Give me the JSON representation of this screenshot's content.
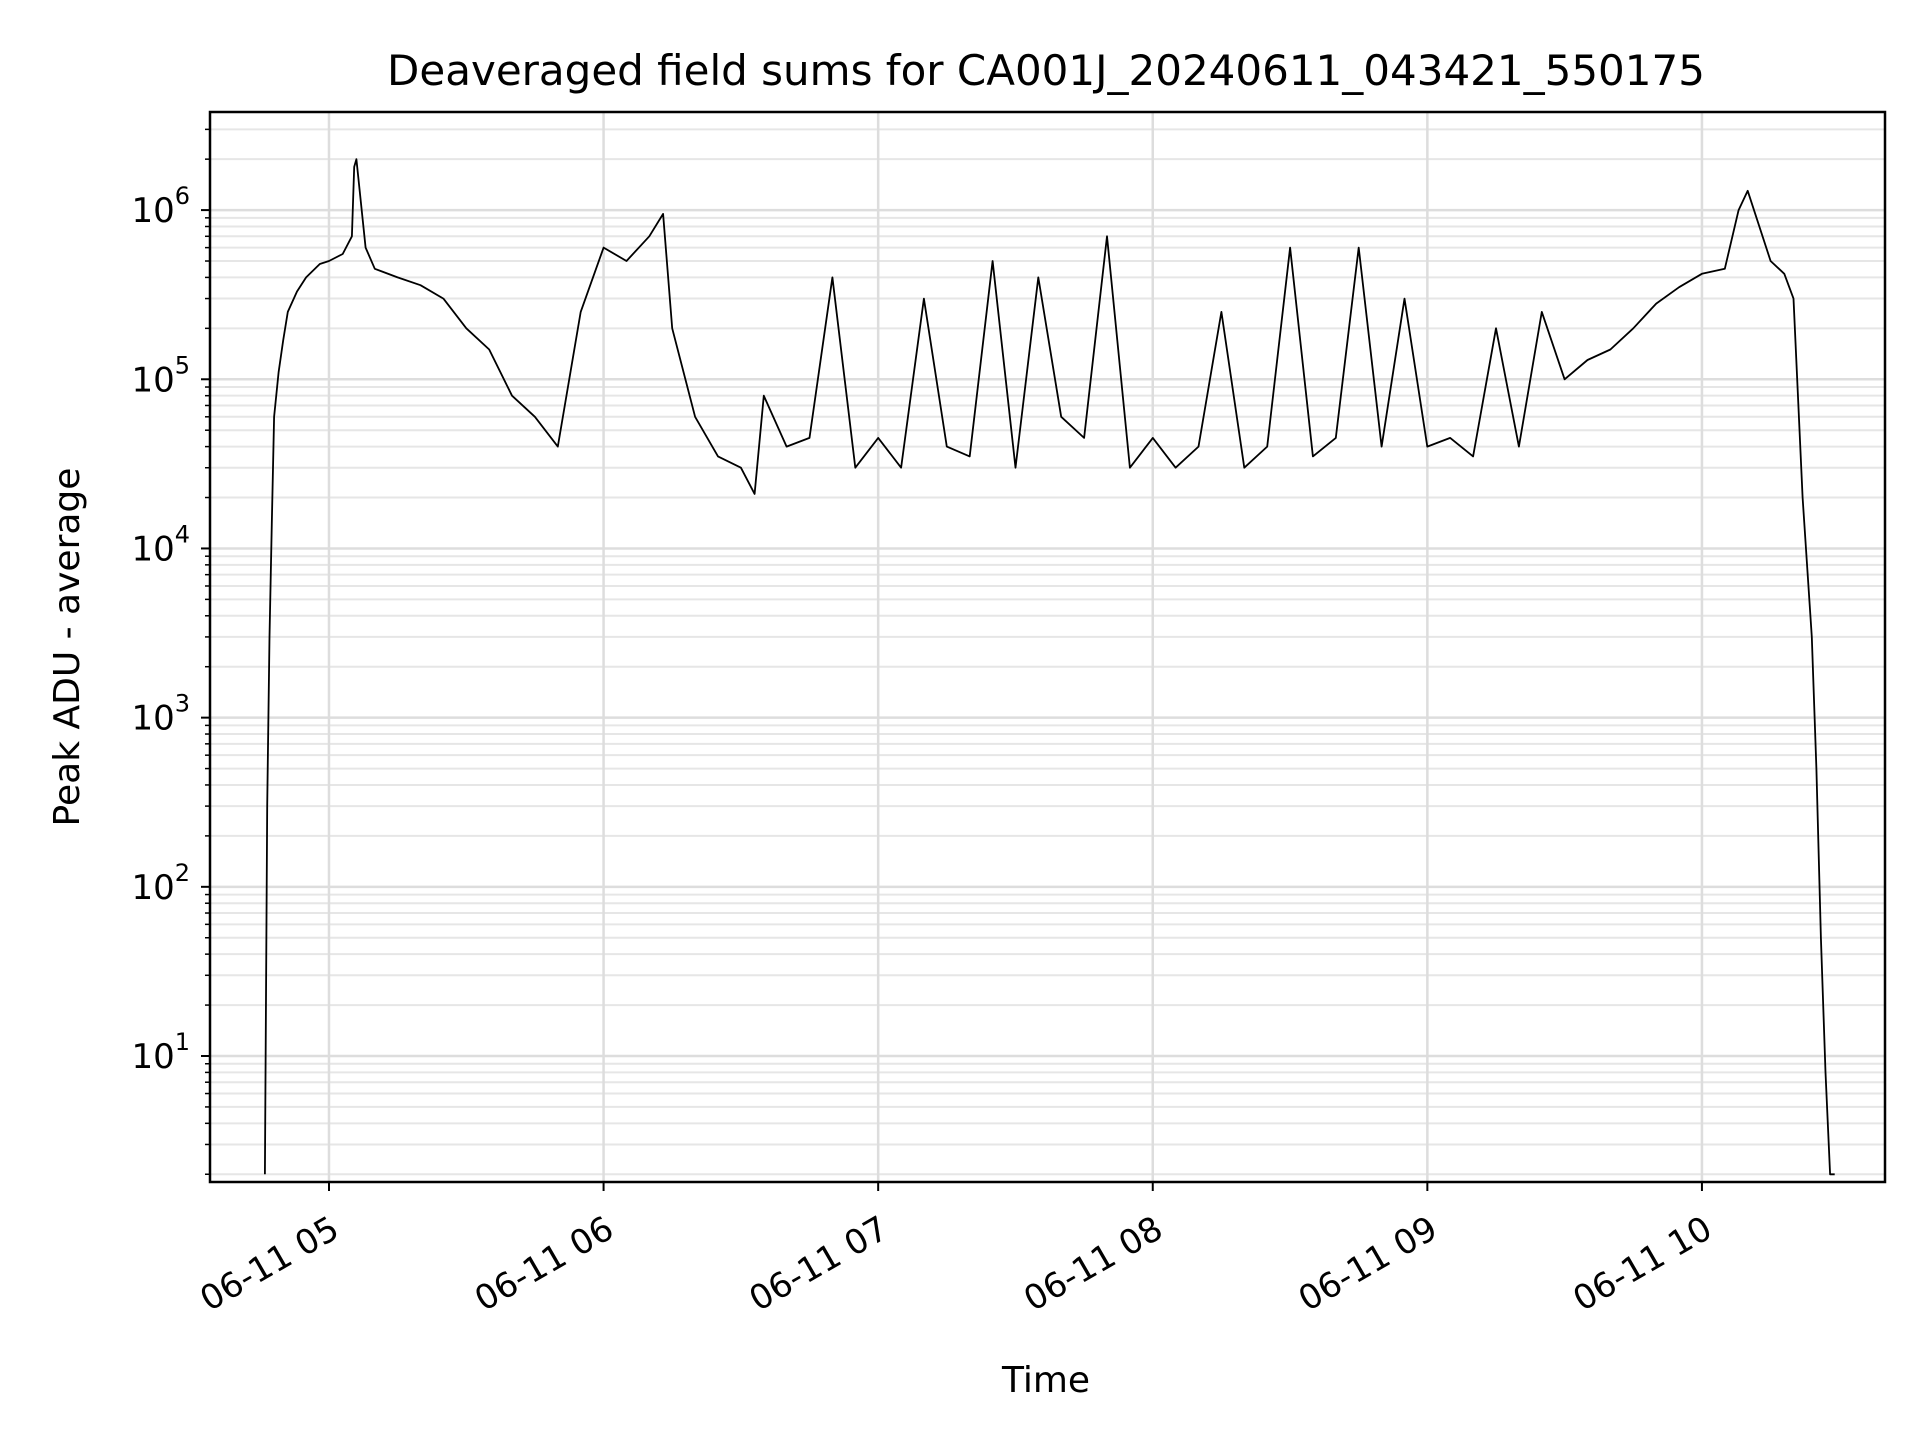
{
  "chart_data": {
    "type": "line",
    "title": "Deaveraged field sums for CA001J_20240611_043421_550175",
    "xlabel": "Time",
    "ylabel": "Peak ADU - average",
    "yscale": "log",
    "xlim": [
      "06-11 04:34",
      "06-11 10:40"
    ],
    "ylim": [
      1.8,
      3800000
    ],
    "grid": true,
    "line_color": "#000000",
    "x_ticks": [
      {
        "value": "06-11 05:00",
        "label": "06-11 05"
      },
      {
        "value": "06-11 06:00",
        "label": "06-11 06"
      },
      {
        "value": "06-11 07:00",
        "label": "06-11 07"
      },
      {
        "value": "06-11 08:00",
        "label": "06-11 08"
      },
      {
        "value": "06-11 09:00",
        "label": "06-11 09"
      },
      {
        "value": "06-11 10:00",
        "label": "06-11 10"
      }
    ],
    "y_ticks": [
      {
        "value": 10,
        "base": "10",
        "exp": "1"
      },
      {
        "value": 100,
        "base": "10",
        "exp": "2"
      },
      {
        "value": 1000,
        "base": "10",
        "exp": "3"
      },
      {
        "value": 10000,
        "base": "10",
        "exp": "4"
      },
      {
        "value": 100000,
        "base": "10",
        "exp": "5"
      },
      {
        "value": 1000000,
        "base": "10",
        "exp": "6"
      }
    ],
    "series": [
      {
        "x": [
          "06-11 04:46",
          "06-11 04:46:30",
          "06-11 04:47",
          "06-11 04:47:30",
          "06-11 04:48",
          "06-11 04:49",
          "06-11 04:50",
          "06-11 04:51",
          "06-11 04:53",
          "06-11 04:55",
          "06-11 04:58",
          "06-11 05:00",
          "06-11 05:03",
          "06-11 05:05",
          "06-11 05:05:30",
          "06-11 05:06",
          "06-11 05:08",
          "06-11 05:10",
          "06-11 05:15",
          "06-11 05:20",
          "06-11 05:25",
          "06-11 05:30",
          "06-11 05:35",
          "06-11 05:40",
          "06-11 05:45",
          "06-11 05:50",
          "06-11 05:55",
          "06-11 06:00",
          "06-11 06:05",
          "06-11 06:10",
          "06-11 06:13",
          "06-11 06:15",
          "06-11 06:20",
          "06-11 06:25",
          "06-11 06:30",
          "06-11 06:33",
          "06-11 06:35",
          "06-11 06:40",
          "06-11 06:45",
          "06-11 06:50",
          "06-11 06:55",
          "06-11 07:00",
          "06-11 07:05",
          "06-11 07:10",
          "06-11 07:15",
          "06-11 07:20",
          "06-11 07:25",
          "06-11 07:30",
          "06-11 07:35",
          "06-11 07:40",
          "06-11 07:45",
          "06-11 07:50",
          "06-11 07:55",
          "06-11 08:00",
          "06-11 08:05",
          "06-11 08:10",
          "06-11 08:15",
          "06-11 08:20",
          "06-11 08:25",
          "06-11 08:30",
          "06-11 08:35",
          "06-11 08:40",
          "06-11 08:45",
          "06-11 08:50",
          "06-11 08:55",
          "06-11 09:00",
          "06-11 09:05",
          "06-11 09:10",
          "06-11 09:15",
          "06-11 09:20",
          "06-11 09:25",
          "06-11 09:30",
          "06-11 09:35",
          "06-11 09:40",
          "06-11 09:45",
          "06-11 09:50",
          "06-11 09:55",
          "06-11 10:00",
          "06-11 10:05",
          "06-11 10:08",
          "06-11 10:10",
          "06-11 10:15",
          "06-11 10:18",
          "06-11 10:20",
          "06-11 10:22",
          "06-11 10:24",
          "06-11 10:25",
          "06-11 10:26",
          "06-11 10:27",
          "06-11 10:28",
          "06-11 10:29"
        ],
        "y": [
          2,
          300,
          3000,
          14000,
          60000,
          110000,
          170000,
          250000,
          330000,
          400000,
          480000,
          500000,
          550000,
          700000,
          1800000,
          2000000,
          600000,
          450000,
          400000,
          360000,
          300000,
          200000,
          150000,
          80000,
          60000,
          40000,
          250000,
          600000,
          500000,
          700000,
          950000,
          200000,
          60000,
          35000,
          30000,
          21000,
          80000,
          40000,
          45000,
          400000,
          30000,
          45000,
          30000,
          300000,
          40000,
          35000,
          500000,
          30000,
          400000,
          60000,
          45000,
          700000,
          30000,
          45000,
          30000,
          40000,
          250000,
          30000,
          40000,
          600000,
          35000,
          45000,
          600000,
          40000,
          300000,
          40000,
          45000,
          35000,
          200000,
          40000,
          250000,
          100000,
          130000,
          150000,
          200000,
          280000,
          350000,
          420000,
          450000,
          1000000,
          1300000,
          500000,
          420000,
          300000,
          20000,
          3000,
          500,
          50,
          8,
          2,
          2
        ]
      }
    ]
  }
}
